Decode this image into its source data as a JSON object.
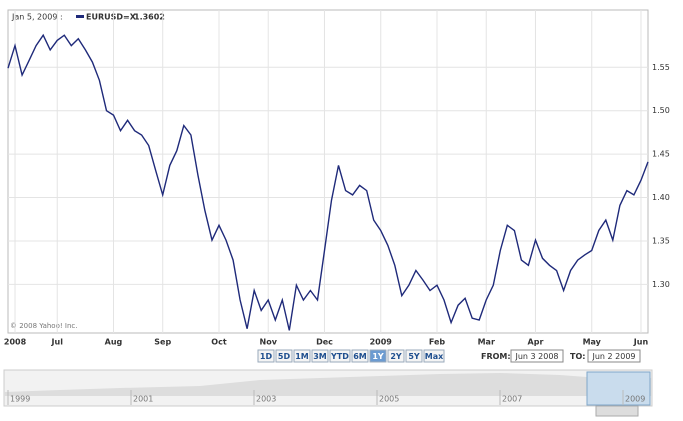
{
  "chart_data": {
    "type": "line",
    "header": "Jan 5, 2009 :",
    "readout_value": 1.3602,
    "copyright": "© 2008 Yahoo! Inc.",
    "categories": [
      null,
      "2008",
      null,
      null,
      null,
      null,
      null,
      "Jul",
      null,
      null,
      null,
      null,
      null,
      null,
      null,
      "Aug",
      null,
      null,
      null,
      null,
      null,
      null,
      "Sep",
      null,
      null,
      null,
      null,
      null,
      null,
      null,
      "Oct",
      null,
      null,
      null,
      null,
      null,
      null,
      "Nov",
      null,
      null,
      null,
      null,
      null,
      null,
      null,
      "Dec",
      null,
      null,
      null,
      null,
      null,
      null,
      null,
      "2009",
      null,
      null,
      null,
      null,
      null,
      null,
      null,
      "Feb",
      null,
      null,
      null,
      null,
      null,
      null,
      "Mar",
      null,
      null,
      null,
      null,
      null,
      null,
      "Apr",
      null,
      null,
      null,
      null,
      null,
      null,
      null,
      "May",
      null,
      null,
      null,
      null,
      null,
      null,
      "Jun",
      null
    ],
    "series": [
      {
        "name": "EURUSD=X",
        "color": "#1f2a7a",
        "values": [
          1.549,
          1.575,
          1.541,
          1.558,
          1.575,
          1.587,
          1.57,
          1.581,
          1.587,
          1.575,
          1.583,
          1.57,
          1.556,
          1.535,
          1.5,
          1.495,
          1.477,
          1.489,
          1.477,
          1.472,
          1.46,
          1.431,
          1.403,
          1.437,
          1.454,
          1.483,
          1.472,
          1.426,
          1.385,
          1.351,
          1.368,
          1.351,
          1.328,
          1.282,
          1.249,
          1.293,
          1.27,
          1.282,
          1.259,
          1.282,
          1.247,
          1.299,
          1.282,
          1.293,
          1.282,
          1.339,
          1.397,
          1.437,
          1.408,
          1.403,
          1.414,
          1.408,
          1.374,
          1.362,
          1.345,
          1.322,
          1.287,
          1.299,
          1.316,
          1.305,
          1.293,
          1.299,
          1.282,
          1.256,
          1.276,
          1.284,
          1.261,
          1.259,
          1.282,
          1.299,
          1.339,
          1.368,
          1.362,
          1.328,
          1.322,
          1.351,
          1.33,
          1.322,
          1.316,
          1.293,
          1.316,
          1.328,
          1.334,
          1.339,
          1.362,
          1.374,
          1.351,
          1.391,
          1.408,
          1.403,
          1.42,
          1.441
        ]
      }
    ],
    "ylim": [
      1.244,
      1.616
    ],
    "yticks": [
      {
        "value": 1.3,
        "label": "1.30"
      },
      1.35,
      {
        "value": 1.4,
        "label": "1.40"
      },
      1.45,
      {
        "value": 1.5,
        "label": "1.50"
      },
      1.55
    ],
    "grid": true,
    "buttons": [
      "1D",
      "5D",
      "1M",
      "3M",
      "YTD",
      "6M",
      "1Y",
      "2Y",
      "5Y",
      "Max"
    ],
    "active_button": "1Y",
    "from_label": "FROM:",
    "from_date": "Jun 3 2008",
    "to_label": "TO:",
    "to_date": "Jun 2 2009",
    "navigator_years": [
      "1999",
      "2001",
      "2003",
      "2005",
      "2007",
      "2009"
    ]
  }
}
